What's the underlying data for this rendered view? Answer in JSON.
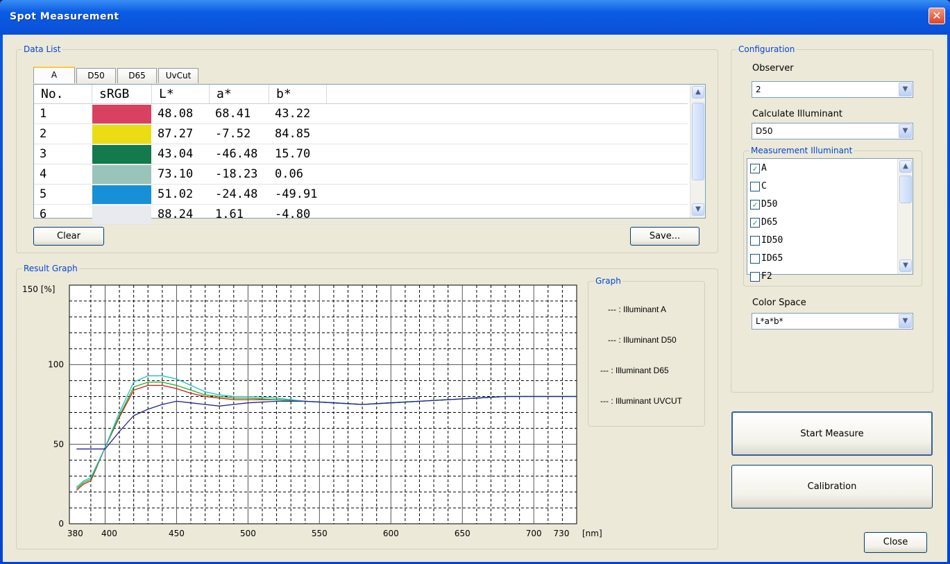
{
  "window": {
    "title": "Spot Measurement",
    "close_glyph": "✕"
  },
  "data_list": {
    "label": "Data List",
    "tabs": [
      "A",
      "D50",
      "D65",
      "UvCut"
    ],
    "columns": [
      "No.",
      "sRGB",
      "L*",
      "a*",
      "b*"
    ],
    "rows": [
      {
        "no": "1",
        "color": "#d8415f",
        "L": "48.08",
        "a": "68.41",
        "b": "43.22"
      },
      {
        "no": "2",
        "color": "#ecdc14",
        "L": "87.27",
        "a": "-7.52",
        "b": "84.85"
      },
      {
        "no": "3",
        "color": "#127a4c",
        "L": "43.04",
        "a": "-46.48",
        "b": "15.70"
      },
      {
        "no": "4",
        "color": "#99c4bc",
        "L": "73.10",
        "a": "-18.23",
        "b": "0.06"
      },
      {
        "no": "5",
        "color": "#1890d8",
        "L": "51.02",
        "a": "-24.48",
        "b": "-49.91"
      }
    ],
    "partial_row": {
      "no": "6",
      "color": "#e9e9f0",
      "L": "88.24",
      "a": "1.61",
      "b": "-4.80"
    },
    "clear_label": "Clear",
    "save_label": "Save..."
  },
  "result_graph": {
    "label": "Result Graph",
    "y_unit": "150 [%]",
    "x_unit": "730 [nm]",
    "legend_title": "Graph",
    "legend": [
      {
        "label": "--- : Illuminant A",
        "color": "#d01818"
      },
      {
        "label": "--- : Illuminant D50",
        "color": "#20b020"
      },
      {
        "label": "--- : Illuminant D65",
        "color": "#20c0c0"
      },
      {
        "label": "--- : Illuminant UVCUT",
        "color": "#202090"
      }
    ]
  },
  "chart_data": {
    "type": "line",
    "xlabel": "[nm]",
    "ylabel": "[%]",
    "xlim": [
      375,
      730
    ],
    "ylim": [
      0,
      150
    ],
    "x_ticks": [
      "380",
      "400",
      "450",
      "500",
      "550",
      "600",
      "650",
      "700",
      "730"
    ],
    "y_ticks": [
      "0",
      "50",
      "100",
      "150"
    ],
    "x": [
      380,
      385,
      390,
      400,
      410,
      420,
      430,
      440,
      450,
      460,
      470,
      480,
      490,
      500,
      520,
      540,
      560,
      580,
      600,
      620,
      640,
      660,
      680,
      700,
      720,
      730
    ],
    "series": [
      {
        "name": "Illuminant A",
        "color": "#d01818",
        "values": [
          21,
          25,
          27,
          48,
          67,
          84,
          87,
          87,
          85,
          82,
          80,
          79,
          78,
          78,
          78,
          77,
          76,
          75,
          76,
          77,
          78,
          79,
          80,
          80,
          80,
          80
        ]
      },
      {
        "name": "Illuminant D50",
        "color": "#20b020",
        "values": [
          22,
          26,
          28,
          48,
          68,
          86,
          89,
          89,
          87,
          84,
          81,
          80,
          79,
          79,
          78,
          77,
          76,
          75,
          76,
          77,
          78,
          79,
          80,
          80,
          80,
          80
        ]
      },
      {
        "name": "Illuminant D65",
        "color": "#20c0c0",
        "values": [
          23,
          27,
          29,
          48,
          70,
          89,
          93,
          93,
          91,
          87,
          83,
          81,
          80,
          80,
          79,
          77,
          76,
          75,
          76,
          77,
          78,
          79,
          80,
          80,
          80,
          80
        ]
      },
      {
        "name": "Illuminant UVCUT",
        "color": "#202090",
        "values": [
          47,
          47,
          47,
          47,
          58,
          68,
          72,
          75,
          77,
          76,
          75,
          74,
          75,
          76,
          77,
          77,
          76,
          75,
          76,
          77,
          78,
          79,
          80,
          80,
          80,
          80
        ]
      }
    ]
  },
  "configuration": {
    "label": "Configuration",
    "observer_label": "Observer",
    "observer_value": "2",
    "calc_illum_label": "Calculate Illuminant",
    "calc_illum_value": "D50",
    "meas_illum_label": "Measurement Illuminant",
    "meas_illum_items": [
      {
        "label": "A",
        "checked": true
      },
      {
        "label": "C",
        "checked": false
      },
      {
        "label": "D50",
        "checked": true
      },
      {
        "label": "D65",
        "checked": true
      },
      {
        "label": "ID50",
        "checked": false
      },
      {
        "label": "ID65",
        "checked": false
      },
      {
        "label": "F2",
        "checked": false
      }
    ],
    "color_space_label": "Color Space",
    "color_space_value": "L*a*b*"
  },
  "actions": {
    "start_label": "Start Measure",
    "calibration_label": "Calibration",
    "close_label": "Close"
  }
}
